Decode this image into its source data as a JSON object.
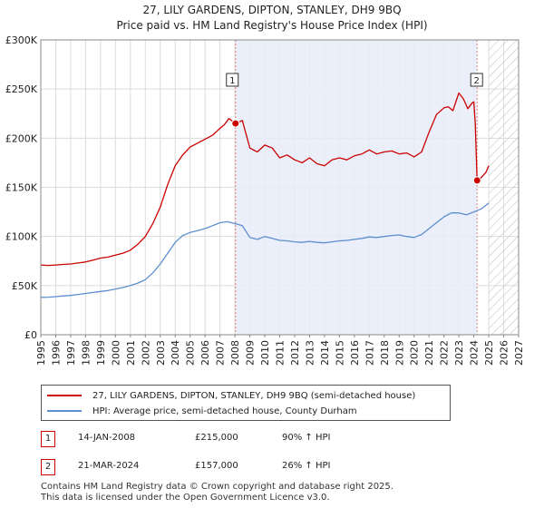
{
  "chart_data": {
    "type": "line",
    "title": "27, LILY GARDENS, DIPTON, STANLEY, DH9 9BQ",
    "subtitle": "Price paid vs. HM Land Registry's House Price Index (HPI)",
    "xlabel": "",
    "ylabel": "",
    "xlim": [
      1995,
      2027
    ],
    "ylim": [
      0,
      300000
    ],
    "x_ticks": [
      "1995",
      "1996",
      "1997",
      "1998",
      "1999",
      "2000",
      "2001",
      "2002",
      "2003",
      "2004",
      "2005",
      "2006",
      "2007",
      "2008",
      "2009",
      "2010",
      "2011",
      "2012",
      "2013",
      "2014",
      "2015",
      "2016",
      "2017",
      "2018",
      "2019",
      "2020",
      "2021",
      "2022",
      "2023",
      "2024",
      "2025",
      "2026",
      "2027"
    ],
    "y_ticks": [
      {
        "value": 0,
        "label": "£0"
      },
      {
        "value": 50000,
        "label": "£50K"
      },
      {
        "value": 100000,
        "label": "£100K"
      },
      {
        "value": 150000,
        "label": "£150K"
      },
      {
        "value": 200000,
        "label": "£200K"
      },
      {
        "value": 250000,
        "label": "£250K"
      },
      {
        "value": 300000,
        "label": "£300K"
      }
    ],
    "shaded_period": [
      2008.04,
      2024.22
    ],
    "forecast_start": 2025.0,
    "series": [
      {
        "name": "27, LILY GARDENS, DIPTON, STANLEY, DH9 9BQ (semi-detached house)",
        "color": "#cc0000",
        "x": [
          1995,
          1995.5,
          1996,
          1996.5,
          1997,
          1997.5,
          1998,
          1998.5,
          1999,
          1999.5,
          2000,
          2000.5,
          2001,
          2001.5,
          2002,
          2002.5,
          2003,
          2003.5,
          2004,
          2004.5,
          2005,
          2005.5,
          2006,
          2006.5,
          2007,
          2007.3,
          2007.6,
          2008.04,
          2008.5,
          2009,
          2009.5,
          2010,
          2010.5,
          2011,
          2011.5,
          2012,
          2012.5,
          2013,
          2013.5,
          2014,
          2014.5,
          2015,
          2015.5,
          2016,
          2016.5,
          2017,
          2017.5,
          2018,
          2018.5,
          2019,
          2019.5,
          2020,
          2020.5,
          2021,
          2021.5,
          2022,
          2022.3,
          2022.6,
          2023,
          2023.3,
          2023.6,
          2023.9,
          2024.0,
          2024.1,
          2024.22,
          2024.5,
          2024.8,
          2025.0
        ],
        "y": [
          71000,
          70500,
          71000,
          71500,
          72000,
          73000,
          74000,
          76000,
          78000,
          79000,
          81000,
          83000,
          86000,
          92000,
          100000,
          113000,
          130000,
          153000,
          172000,
          183000,
          191000,
          195000,
          199000,
          203000,
          210000,
          214000,
          220000,
          215000,
          218000,
          190000,
          186000,
          193000,
          190000,
          180000,
          183000,
          178000,
          175000,
          180000,
          174000,
          172000,
          178000,
          180000,
          178000,
          182000,
          184000,
          188000,
          184000,
          186000,
          187000,
          184000,
          185000,
          181000,
          186000,
          206000,
          224000,
          231000,
          232000,
          228000,
          246000,
          240000,
          230000,
          236000,
          237000,
          215000,
          157000,
          160000,
          165000,
          172000
        ]
      },
      {
        "name": "HPI: Average price, semi-detached house, County Durham",
        "color": "#5b8fd0",
        "x": [
          1995,
          1995.5,
          1996,
          1996.5,
          1997,
          1997.5,
          1998,
          1998.5,
          1999,
          1999.5,
          2000,
          2000.5,
          2001,
          2001.5,
          2002,
          2002.5,
          2003,
          2003.5,
          2004,
          2004.5,
          2005,
          2005.5,
          2006,
          2006.5,
          2007,
          2007.5,
          2008.04,
          2008.5,
          2009,
          2009.5,
          2010,
          2010.5,
          2011,
          2011.5,
          2012,
          2012.5,
          2013,
          2013.5,
          2014,
          2014.5,
          2015,
          2015.5,
          2016,
          2016.5,
          2017,
          2017.5,
          2018,
          2018.5,
          2019,
          2019.5,
          2020,
          2020.5,
          2021,
          2021.5,
          2022,
          2022.5,
          2023,
          2023.5,
          2024,
          2024.5,
          2025.0
        ],
        "y": [
          38000,
          38200,
          38800,
          39500,
          40000,
          41000,
          42000,
          43000,
          44000,
          45000,
          46500,
          48000,
          50000,
          52500,
          56000,
          63000,
          72000,
          83000,
          94000,
          101000,
          104000,
          106000,
          108000,
          111000,
          114000,
          115000,
          113000,
          111000,
          99000,
          97000,
          100000,
          98000,
          96000,
          95500,
          94500,
          94000,
          95000,
          94000,
          93500,
          94500,
          95500,
          96000,
          97000,
          98000,
          99500,
          99000,
          100000,
          101000,
          101500,
          100000,
          99000,
          102000,
          108000,
          114000,
          120000,
          124000,
          124000,
          122000,
          125000,
          128000,
          134000
        ]
      }
    ],
    "transactions": [
      {
        "label": "1",
        "x": 2008.04,
        "y": 215000
      },
      {
        "label": "2",
        "x": 2024.22,
        "y": 157000
      }
    ]
  },
  "legend": {
    "series1": "27, LILY GARDENS, DIPTON, STANLEY, DH9 9BQ (semi-detached house)",
    "series2": "HPI: Average price, semi-detached house, County Durham",
    "color1": "#cc0000",
    "color2": "#5b8fd0"
  },
  "table": [
    {
      "num": "1",
      "date": "14-JAN-2008",
      "price": "£215,000",
      "hpi": "90% ↑ HPI"
    },
    {
      "num": "2",
      "date": "21-MAR-2024",
      "price": "£157,000",
      "hpi": "26% ↑ HPI"
    }
  ],
  "footer": {
    "line1": "Contains HM Land Registry data © Crown copyright and database right 2025.",
    "line2": "This data is licensed under the Open Government Licence v3.0."
  }
}
